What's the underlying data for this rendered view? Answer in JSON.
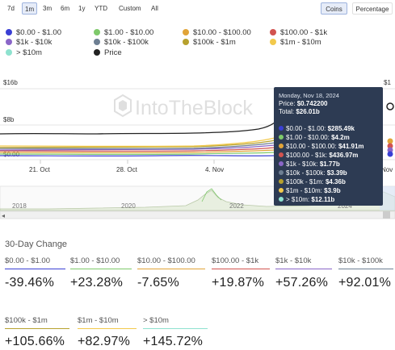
{
  "range_buttons": [
    "7d",
    "1m",
    "3m",
    "6m",
    "1y",
    "YTD",
    "Custom",
    "All"
  ],
  "active_range": "1m",
  "mode_buttons": [
    "Coins",
    "Percentage"
  ],
  "active_mode": "Coins",
  "legend": [
    {
      "label": "$0.00 - $1.00",
      "color": "#3a3fd4"
    },
    {
      "label": "$1.00 - $10.00",
      "color": "#7ec96a"
    },
    {
      "label": "$10.00 - $100.00",
      "color": "#e1a438"
    },
    {
      "label": "$100.00 - $1k",
      "color": "#d2534f"
    },
    {
      "label": "$1k - $10k",
      "color": "#8a66c8"
    },
    {
      "label": "$10k - $100k",
      "color": "#6e7f93"
    },
    {
      "label": "$100k - $1m",
      "color": "#b7a12e"
    },
    {
      "label": "$1m - $10m",
      "color": "#f2c94c"
    },
    {
      "label": "> $10m",
      "color": "#8ee2cf"
    },
    {
      "label": "Price",
      "color": "#222222"
    }
  ],
  "y_axis": {
    "top_label": "$16b",
    "mid_label": "$8b",
    "bottom_label": "$0.00",
    "right_top": "$1"
  },
  "x_axis": [
    "21. Oct",
    "28. Oct",
    "4. Nov",
    "Nov"
  ],
  "navigator_years": [
    "2018",
    "2020",
    "2022",
    "2024"
  ],
  "watermark": "IntoTheBlock",
  "tooltip": {
    "date": "Monday, Nov 18, 2024",
    "price_label": "Price:",
    "price": "$0.742200",
    "total_label": "Total:",
    "total": "$26.01b",
    "rows": [
      {
        "label": "$0.00 - $1.00:",
        "value": "$285.49k",
        "color": "#3a3fd4"
      },
      {
        "label": "$1.00 - $10.00:",
        "value": "$4.2m",
        "color": "#7ec96a"
      },
      {
        "label": "$10.00 - $100.00:",
        "value": "$41.91m",
        "color": "#e1a438"
      },
      {
        "label": "$100.00 - $1k:",
        "value": "$436.97m",
        "color": "#d2534f"
      },
      {
        "label": "$1k - $10k:",
        "value": "$1.77b",
        "color": "#8a66c8"
      },
      {
        "label": "$10k - $100k:",
        "value": "$3.39b",
        "color": "#6e7f93"
      },
      {
        "label": "$100k - $1m:",
        "value": "$4.36b",
        "color": "#b7a12e"
      },
      {
        "label": "$1m - $10m:",
        "value": "$3.9b",
        "color": "#f2c94c"
      },
      {
        "label": "> $10m:",
        "value": "$12.11b",
        "color": "#8ee2cf"
      }
    ]
  },
  "change_title": "30-Day Change",
  "changes": [
    {
      "label": "$0.00 - $1.00",
      "value": "-39.46%",
      "color": "#3a3fd4"
    },
    {
      "label": "$1.00 - $10.00",
      "value": "+23.28%",
      "color": "#7ec96a"
    },
    {
      "label": "$10.00 - $100.00",
      "value": "-7.65%",
      "color": "#e1a438"
    },
    {
      "label": "$100.00 - $1k",
      "value": "+19.87%",
      "color": "#d2534f"
    },
    {
      "label": "$1k - $10k",
      "value": "+57.26%",
      "color": "#8a66c8"
    },
    {
      "label": "$10k - $100k",
      "value": "+92.01%",
      "color": "#6e7f93"
    },
    {
      "label": "$100k - $1m",
      "value": "+105.66%",
      "color": "#b7a12e"
    },
    {
      "label": "$1m - $10m",
      "value": "+82.97%",
      "color": "#f2c94c"
    },
    {
      "label": "> $10m",
      "value": "+145.72%",
      "color": "#8ee2cf"
    }
  ]
}
